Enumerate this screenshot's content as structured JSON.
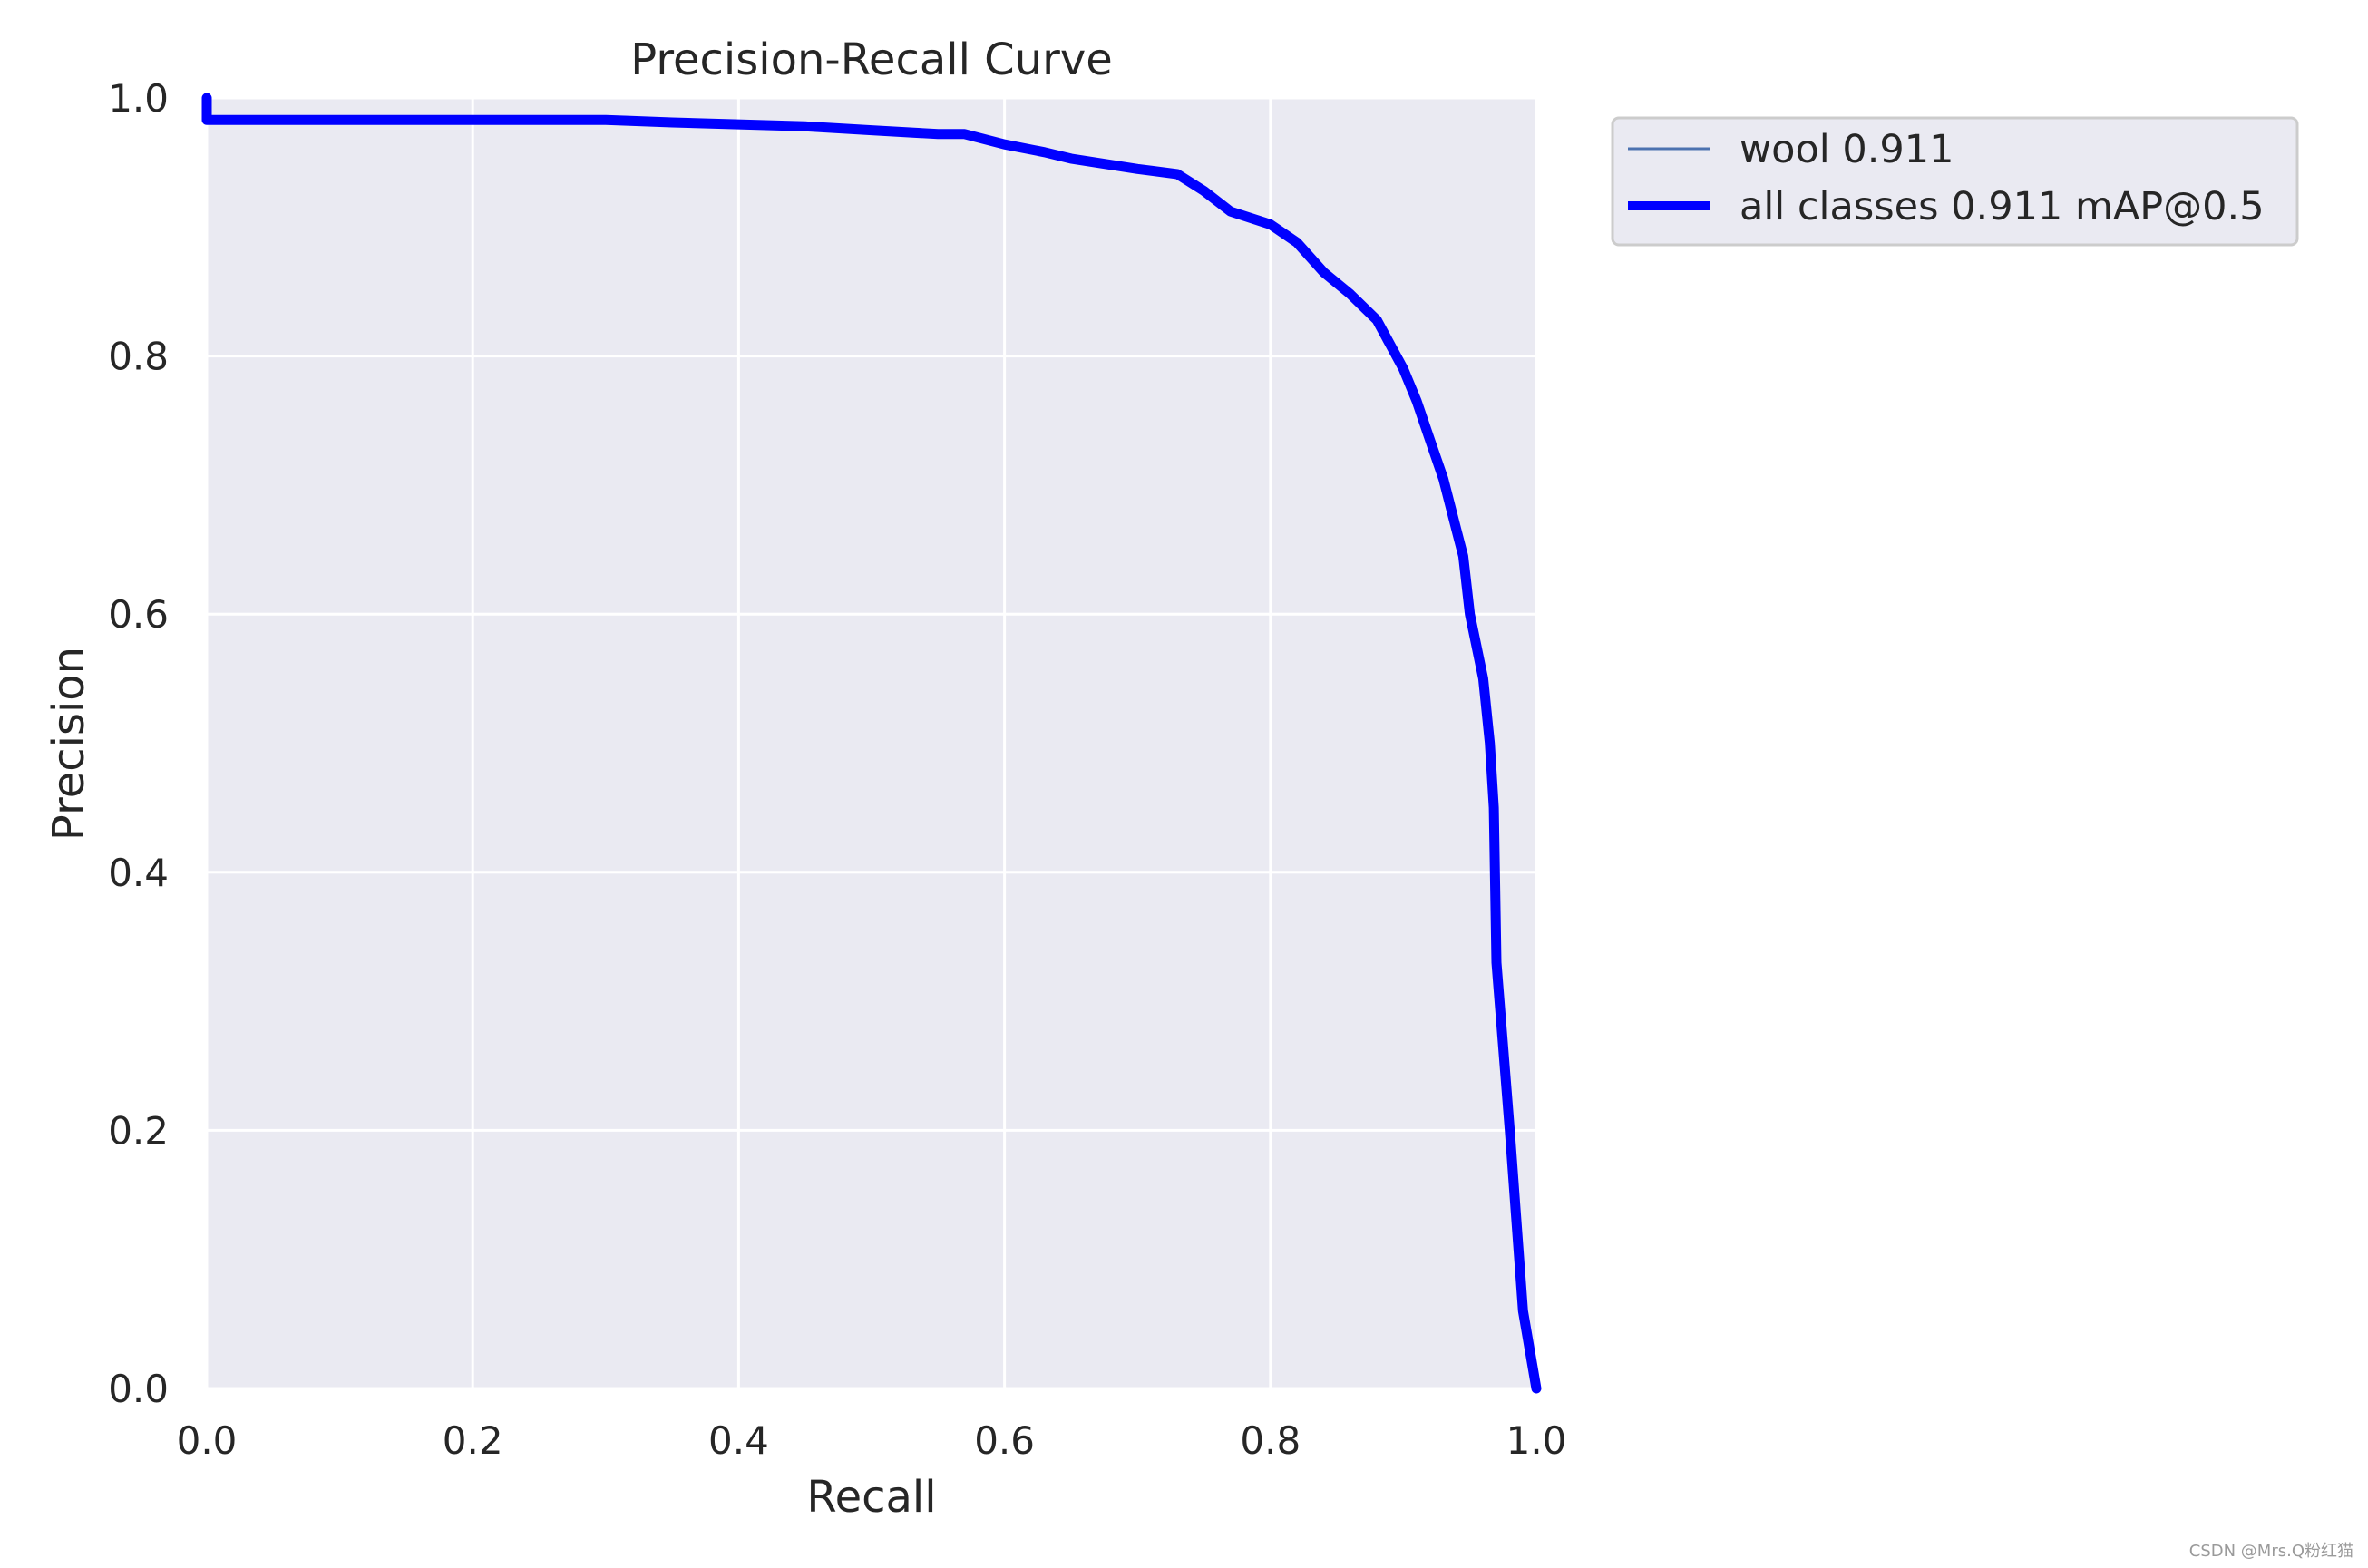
{
  "chart_data": {
    "type": "line",
    "title": "Precision-Recall Curve",
    "xlabel": "Recall",
    "ylabel": "Precision",
    "xlim": [
      0,
      1
    ],
    "ylim": [
      0,
      1
    ],
    "grid": true,
    "legend_placement": "outside-upper-right",
    "x_ticks": [
      "0.0",
      "0.2",
      "0.4",
      "0.6",
      "0.8",
      "1.0"
    ],
    "y_ticks": [
      "0.0",
      "0.2",
      "0.4",
      "0.6",
      "0.8",
      "1.0"
    ],
    "series": [
      {
        "name": "wool 0.911",
        "color": "#4c72b0",
        "points": [
          [
            0.0,
            1.0
          ],
          [
            0.0,
            0.983
          ],
          [
            0.3,
            0.983
          ],
          [
            0.35,
            0.981
          ],
          [
            0.45,
            0.978
          ],
          [
            0.5,
            0.975
          ],
          [
            0.55,
            0.972
          ],
          [
            0.57,
            0.972
          ],
          [
            0.6,
            0.964
          ],
          [
            0.63,
            0.958
          ],
          [
            0.65,
            0.953
          ],
          [
            0.7,
            0.945
          ],
          [
            0.73,
            0.941
          ],
          [
            0.75,
            0.928
          ],
          [
            0.77,
            0.912
          ],
          [
            0.8,
            0.902
          ],
          [
            0.82,
            0.888
          ],
          [
            0.84,
            0.865
          ],
          [
            0.86,
            0.848
          ],
          [
            0.88,
            0.828
          ],
          [
            0.9,
            0.79
          ],
          [
            0.91,
            0.765
          ],
          [
            0.92,
            0.735
          ],
          [
            0.93,
            0.705
          ],
          [
            0.94,
            0.665
          ],
          [
            0.945,
            0.645
          ],
          [
            0.95,
            0.6
          ],
          [
            0.96,
            0.55
          ],
          [
            0.965,
            0.5
          ],
          [
            0.968,
            0.45
          ],
          [
            0.97,
            0.33
          ],
          [
            0.98,
            0.2
          ],
          [
            0.99,
            0.06
          ],
          [
            1.0,
            0.0
          ]
        ]
      },
      {
        "name": "all classes 0.911 mAP@0.5",
        "color": "#0000ff",
        "points": [
          [
            0.0,
            1.0
          ],
          [
            0.0,
            0.983
          ],
          [
            0.3,
            0.983
          ],
          [
            0.35,
            0.981
          ],
          [
            0.45,
            0.978
          ],
          [
            0.5,
            0.975
          ],
          [
            0.55,
            0.972
          ],
          [
            0.57,
            0.972
          ],
          [
            0.6,
            0.964
          ],
          [
            0.63,
            0.958
          ],
          [
            0.65,
            0.953
          ],
          [
            0.7,
            0.945
          ],
          [
            0.73,
            0.941
          ],
          [
            0.75,
            0.928
          ],
          [
            0.77,
            0.912
          ],
          [
            0.8,
            0.902
          ],
          [
            0.82,
            0.888
          ],
          [
            0.84,
            0.865
          ],
          [
            0.86,
            0.848
          ],
          [
            0.88,
            0.828
          ],
          [
            0.9,
            0.79
          ],
          [
            0.91,
            0.765
          ],
          [
            0.92,
            0.735
          ],
          [
            0.93,
            0.705
          ],
          [
            0.94,
            0.665
          ],
          [
            0.945,
            0.645
          ],
          [
            0.95,
            0.6
          ],
          [
            0.96,
            0.55
          ],
          [
            0.965,
            0.5
          ],
          [
            0.968,
            0.45
          ],
          [
            0.97,
            0.33
          ],
          [
            0.98,
            0.2
          ],
          [
            0.99,
            0.06
          ],
          [
            1.0,
            0.0
          ]
        ]
      }
    ]
  },
  "watermark": "CSDN @Mrs.Q粉红猫",
  "colors": {
    "plot_background": "#eaeaf2",
    "grid": "#ffffff",
    "text": "#262626"
  }
}
